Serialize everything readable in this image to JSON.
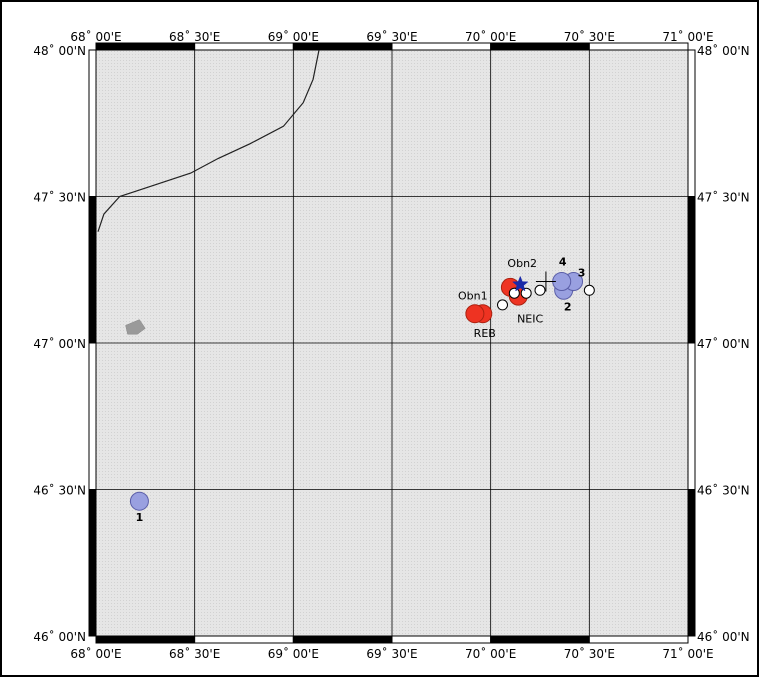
{
  "map": {
    "lon_min": 68.0,
    "lon_max": 71.0,
    "lat_min": 46.0,
    "lat_max": 48.0,
    "land_color": "#e6e6e6",
    "frame_color": "#000000",
    "lon_ticks": [
      {
        "value": 68.0,
        "label": "68˚ 00'E"
      },
      {
        "value": 68.5,
        "label": "68˚ 30'E"
      },
      {
        "value": 69.0,
        "label": "69˚ 00'E"
      },
      {
        "value": 69.5,
        "label": "69˚ 30'E"
      },
      {
        "value": 70.0,
        "label": "70˚ 00'E"
      },
      {
        "value": 70.5,
        "label": "70˚ 30'E"
      },
      {
        "value": 71.0,
        "label": "71˚ 00'E"
      }
    ],
    "lat_ticks": [
      {
        "value": 48.0,
        "label": "48˚ 00'N"
      },
      {
        "value": 47.5,
        "label": "47˚ 30'N"
      },
      {
        "value": 47.0,
        "label": "47˚ 00'N"
      },
      {
        "value": 46.5,
        "label": "46˚ 30'N"
      },
      {
        "value": 46.0,
        "label": "46˚ 00'N"
      }
    ],
    "coastline": [
      [
        69.13,
        48.0
      ],
      [
        69.1,
        47.9
      ],
      [
        69.05,
        47.82
      ],
      [
        68.95,
        47.74
      ],
      [
        68.78,
        47.68
      ],
      [
        68.62,
        47.63
      ],
      [
        68.48,
        47.58
      ],
      [
        68.3,
        47.54
      ],
      [
        68.12,
        47.5
      ],
      [
        68.04,
        47.44
      ],
      [
        68.01,
        47.38
      ]
    ],
    "lake": [
      [
        68.15,
        47.06
      ],
      [
        68.22,
        47.08
      ],
      [
        68.25,
        47.05
      ],
      [
        68.21,
        47.03
      ],
      [
        68.16,
        47.03
      ]
    ],
    "events_red": [
      {
        "lon": 69.96,
        "lat": 47.1,
        "color": "#ee3322",
        "label": "Obn1"
      },
      {
        "lon": 70.1,
        "lat": 47.19,
        "color": "#ee3322",
        "label": ""
      },
      {
        "lon": 70.14,
        "lat": 47.16,
        "color": "#ee3322",
        "label": ""
      },
      {
        "lon": 69.92,
        "lat": 47.1,
        "color": "#ee3322",
        "label": ""
      }
    ],
    "events_blue": [
      {
        "lon": 68.22,
        "lat": 46.46,
        "color": "#99a0e0",
        "label": "1"
      },
      {
        "lon": 70.37,
        "lat": 47.18,
        "color": "#99a0e0",
        "label": "2"
      },
      {
        "lon": 70.42,
        "lat": 47.21,
        "color": "#99a0e0",
        "label": "3"
      },
      {
        "lon": 70.36,
        "lat": 47.21,
        "color": "#99a0e0",
        "label": "4"
      }
    ],
    "events_white": [
      {
        "lon": 70.06,
        "lat": 47.13
      },
      {
        "lon": 70.12,
        "lat": 47.17
      },
      {
        "lon": 70.18,
        "lat": 47.17
      },
      {
        "lon": 70.25,
        "lat": 47.18
      },
      {
        "lon": 70.5,
        "lat": 47.18
      }
    ],
    "star": {
      "lon": 70.15,
      "lat": 47.2,
      "color": "#1a2aa8"
    },
    "cross": {
      "lon": 70.28,
      "lat": 47.21
    },
    "labels": {
      "obn2": "Obn2",
      "reb": "REB",
      "neic": "NEIC"
    }
  }
}
